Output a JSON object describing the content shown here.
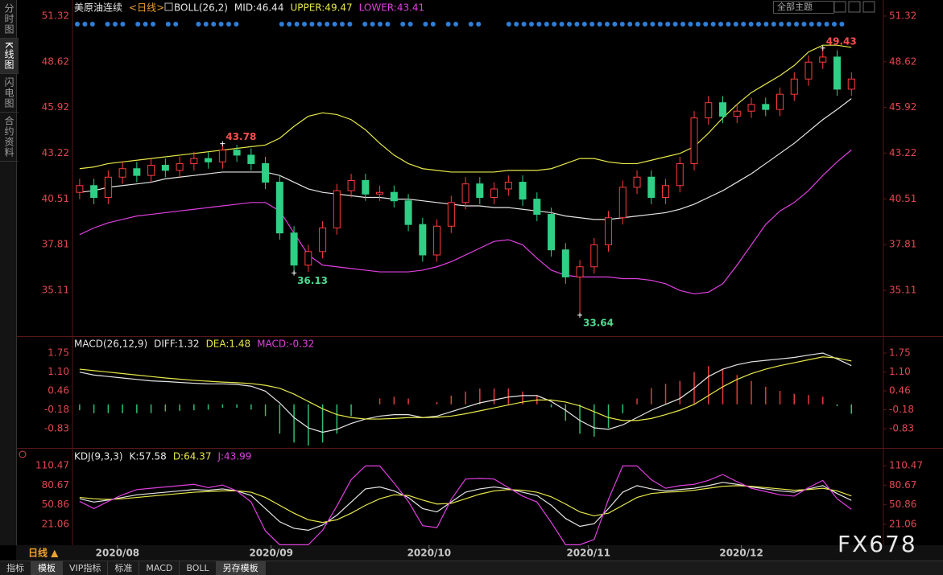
{
  "chart_data": [
    {
      "type": "candlestick",
      "title": "美原油连续",
      "period": "<日线>",
      "indicator": "BOLL(26,2)",
      "x": [
        0,
        2,
        4,
        6,
        8,
        10,
        12,
        14,
        16,
        18,
        20,
        22,
        24,
        26,
        28,
        30,
        32,
        34,
        36,
        38,
        40,
        42,
        44,
        46,
        48,
        50,
        52,
        54,
        56,
        58,
        60,
        62,
        64,
        66,
        68,
        70,
        72,
        74,
        76,
        78,
        80,
        82,
        84,
        86,
        88,
        90,
        92,
        94,
        96,
        98,
        100,
        102,
        104,
        106,
        108
      ],
      "open": [
        40.9,
        41.3,
        40.6,
        41.8,
        42.3,
        41.9,
        42.5,
        42.2,
        42.6,
        42.9,
        42.7,
        43.4,
        43.1,
        42.6,
        41.5,
        38.5,
        36.6,
        37.4,
        38.8,
        41.0,
        41.6,
        40.8,
        40.9,
        40.4,
        39.0,
        37.2,
        38.9,
        40.3,
        41.4,
        40.6,
        41.1,
        41.5,
        40.5,
        39.6,
        37.5,
        35.9,
        36.5,
        37.8,
        39.4,
        41.2,
        41.8,
        40.6,
        41.3,
        42.6,
        45.3,
        46.2,
        45.4,
        45.7,
        46.1,
        45.8,
        46.7,
        47.6,
        48.6,
        48.9,
        47.0
      ],
      "high": [
        41.7,
        41.7,
        42.2,
        42.7,
        42.7,
        42.9,
        42.9,
        43.0,
        43.3,
        43.3,
        43.78,
        43.7,
        43.5,
        43.0,
        41.9,
        38.9,
        37.8,
        39.2,
        41.4,
        42.0,
        42.0,
        41.3,
        41.3,
        40.8,
        39.4,
        39.3,
        40.7,
        41.8,
        41.8,
        41.5,
        41.9,
        41.9,
        40.9,
        40.0,
        37.9,
        36.9,
        38.2,
        39.8,
        41.6,
        42.2,
        42.2,
        41.7,
        43.0,
        45.7,
        46.6,
        46.6,
        46.1,
        46.5,
        46.5,
        47.1,
        48.0,
        49.0,
        49.43,
        49.3,
        48.0
      ],
      "low": [
        40.5,
        40.2,
        40.2,
        41.4,
        41.5,
        41.5,
        41.8,
        41.8,
        42.2,
        42.3,
        42.3,
        42.7,
        42.2,
        41.1,
        38.1,
        36.13,
        36.2,
        37.0,
        38.4,
        40.6,
        40.4,
        40.4,
        40.0,
        38.6,
        36.8,
        36.8,
        38.5,
        39.9,
        40.2,
        40.2,
        40.7,
        40.1,
        39.2,
        37.1,
        35.5,
        33.64,
        36.1,
        37.4,
        39.0,
        40.8,
        40.2,
        40.2,
        40.9,
        42.2,
        44.9,
        45.0,
        45.0,
        45.3,
        45.4,
        45.4,
        46.3,
        47.2,
        48.2,
        46.6,
        46.6
      ],
      "close": [
        41.3,
        40.6,
        41.8,
        42.3,
        41.9,
        42.5,
        42.2,
        42.6,
        42.9,
        42.7,
        43.4,
        43.1,
        42.6,
        41.5,
        38.5,
        36.6,
        37.4,
        38.8,
        41.0,
        41.6,
        40.8,
        40.9,
        40.4,
        39.0,
        37.2,
        38.9,
        40.3,
        41.4,
        40.6,
        41.1,
        41.5,
        40.5,
        39.6,
        37.5,
        35.9,
        36.5,
        37.8,
        39.4,
        41.2,
        41.8,
        40.6,
        41.3,
        42.6,
        45.3,
        46.2,
        45.4,
        45.7,
        46.1,
        45.8,
        46.7,
        47.6,
        48.6,
        48.9,
        47.0,
        47.6
      ],
      "up_color": "#ff3c3c",
      "down_color": "#2fcf86",
      "series": [
        {
          "label": "MID:46.44",
          "color": "#e6e6e6",
          "values": [
            40.9,
            41.0,
            41.2,
            41.3,
            41.4,
            41.5,
            41.7,
            41.8,
            41.9,
            42.0,
            42.1,
            42.1,
            42.1,
            42.1,
            41.9,
            41.5,
            41.1,
            40.9,
            40.8,
            40.7,
            40.6,
            40.6,
            40.5,
            40.5,
            40.4,
            40.3,
            40.2,
            40.1,
            40.1,
            40.0,
            40.0,
            39.9,
            39.8,
            39.7,
            39.5,
            39.4,
            39.3,
            39.3,
            39.4,
            39.5,
            39.6,
            39.7,
            39.9,
            40.2,
            40.6,
            41.0,
            41.5,
            42.0,
            42.6,
            43.2,
            43.8,
            44.5,
            45.2,
            45.8,
            46.44
          ]
        },
        {
          "label": "UPPER:49.47",
          "color": "#e8e84a",
          "values": [
            42.3,
            42.4,
            42.6,
            42.7,
            42.8,
            42.9,
            43.0,
            43.1,
            43.2,
            43.3,
            43.4,
            43.5,
            43.6,
            43.7,
            44.1,
            44.8,
            45.4,
            45.6,
            45.5,
            45.2,
            44.6,
            43.8,
            43.1,
            42.6,
            42.3,
            42.2,
            42.1,
            42.1,
            42.1,
            42.1,
            42.2,
            42.2,
            42.2,
            42.3,
            42.6,
            42.9,
            42.9,
            42.7,
            42.6,
            42.6,
            42.8,
            43.0,
            43.2,
            43.6,
            44.4,
            45.3,
            46.1,
            46.8,
            47.3,
            47.8,
            48.4,
            49.2,
            49.6,
            49.6,
            49.47
          ]
        },
        {
          "label": "LOWER:43.41",
          "color": "#e040e0",
          "values": [
            38.4,
            38.8,
            39.1,
            39.3,
            39.5,
            39.6,
            39.7,
            39.8,
            39.9,
            40.0,
            40.1,
            40.2,
            40.3,
            40.3,
            39.8,
            38.5,
            37.2,
            36.6,
            36.5,
            36.4,
            36.3,
            36.2,
            36.2,
            36.2,
            36.3,
            36.5,
            36.8,
            37.2,
            37.6,
            38.0,
            38.1,
            37.8,
            37.0,
            36.3,
            36.0,
            35.9,
            35.9,
            35.9,
            35.8,
            35.8,
            35.7,
            35.5,
            35.1,
            34.9,
            35.0,
            35.5,
            36.6,
            37.8,
            39.0,
            39.8,
            40.3,
            41.0,
            41.9,
            42.7,
            43.41
          ]
        }
      ],
      "marked_points": [
        {
          "field": "high",
          "index": 10,
          "color": "#ff4d4d"
        },
        {
          "field": "low",
          "index": 15,
          "color": "#4fd98f"
        },
        {
          "field": "low",
          "index": 35,
          "color": "#4fd98f"
        },
        {
          "field": "high",
          "index": 52,
          "color": "#ff4d4d"
        }
      ],
      "xlim": [
        -1,
        110
      ],
      "xticks": [
        {
          "value": 5.3,
          "label": "2020/08"
        },
        {
          "value": 26.8,
          "label": "2020/09"
        },
        {
          "value": 48.9,
          "label": "2020/10"
        },
        {
          "value": 71.2,
          "label": "2020/11"
        },
        {
          "value": 92.6,
          "label": "2020/12"
        }
      ],
      "ylim": [
        32.4,
        51.32
      ],
      "yticks": [
        51.32,
        48.62,
        45.92,
        43.22,
        40.51,
        37.81,
        35.11
      ]
    },
    {
      "type": "macd",
      "indicator": "MACD(26,12,9)",
      "series": [
        {
          "label": "DIFF:1.32",
          "color": "#e6e6e6",
          "values": [
            1.1,
            1.0,
            0.95,
            0.9,
            0.85,
            0.8,
            0.78,
            0.75,
            0.72,
            0.7,
            0.7,
            0.68,
            0.62,
            0.45,
            0.05,
            -0.45,
            -0.8,
            -0.95,
            -0.85,
            -0.65,
            -0.5,
            -0.4,
            -0.35,
            -0.35,
            -0.45,
            -0.4,
            -0.25,
            -0.1,
            0.05,
            0.15,
            0.25,
            0.3,
            0.3,
            0.1,
            -0.2,
            -0.55,
            -0.8,
            -0.85,
            -0.7,
            -0.45,
            -0.2,
            0.0,
            0.2,
            0.55,
            0.95,
            1.2,
            1.35,
            1.45,
            1.5,
            1.55,
            1.6,
            1.68,
            1.75,
            1.55,
            1.32
          ]
        },
        {
          "label": "DEA:1.48",
          "color": "#e8e84a",
          "values": [
            1.2,
            1.15,
            1.1,
            1.05,
            1.0,
            0.95,
            0.9,
            0.86,
            0.82,
            0.79,
            0.76,
            0.74,
            0.71,
            0.65,
            0.55,
            0.35,
            0.1,
            -0.15,
            -0.35,
            -0.45,
            -0.5,
            -0.5,
            -0.48,
            -0.45,
            -0.45,
            -0.44,
            -0.4,
            -0.32,
            -0.22,
            -0.12,
            -0.02,
            0.08,
            0.15,
            0.15,
            0.08,
            -0.05,
            -0.25,
            -0.45,
            -0.55,
            -0.55,
            -0.48,
            -0.35,
            -0.2,
            0.0,
            0.3,
            0.6,
            0.85,
            1.05,
            1.2,
            1.32,
            1.42,
            1.52,
            1.62,
            1.58,
            1.48
          ]
        }
      ],
      "bars": {
        "label": "MACD:-0.32",
        "label_color": "#e040e0",
        "up_color": "#e03c3c",
        "down_color": "#2fbf71",
        "values": [
          -0.2,
          -0.3,
          -0.3,
          -0.3,
          -0.3,
          -0.3,
          -0.24,
          -0.22,
          -0.2,
          -0.18,
          -0.12,
          -0.12,
          -0.18,
          -0.4,
          -1.0,
          -1.3,
          -1.4,
          -1.3,
          -1.0,
          -0.4,
          0.0,
          0.2,
          0.26,
          0.2,
          0.0,
          0.08,
          0.3,
          0.44,
          0.54,
          0.54,
          0.54,
          0.44,
          0.3,
          -0.1,
          -0.56,
          -1.0,
          -1.1,
          -0.8,
          -0.3,
          0.2,
          0.56,
          0.7,
          0.8,
          1.1,
          1.3,
          1.2,
          1.0,
          0.8,
          0.6,
          0.46,
          0.36,
          0.32,
          0.26,
          -0.06,
          -0.32
        ]
      },
      "ylim": [
        -1.43,
        1.75
      ],
      "yticks": [
        1.75,
        {
          "value": 1.1,
          "label": "1.10"
        },
        0.46,
        -0.18,
        -0.83
      ]
    },
    {
      "type": "kdj",
      "indicator": "KDJ(9,3,3)",
      "series": [
        {
          "label": "K:57.58",
          "color": "#e6e6e6",
          "values": [
            60,
            55,
            58,
            62,
            66,
            68,
            70,
            72,
            74,
            73,
            75,
            72,
            65,
            45,
            25,
            15,
            12,
            20,
            35,
            55,
            75,
            78,
            72,
            62,
            45,
            40,
            55,
            70,
            75,
            78,
            75,
            70,
            65,
            50,
            30,
            18,
            22,
            45,
            70,
            80,
            75,
            72,
            74,
            76,
            80,
            85,
            82,
            78,
            75,
            72,
            70,
            75,
            80,
            68,
            57.58
          ]
        },
        {
          "label": "D:64.37",
          "color": "#e8e84a",
          "values": [
            62,
            60,
            59,
            60,
            62,
            64,
            66,
            68,
            70,
            71,
            72,
            72,
            70,
            62,
            50,
            38,
            28,
            24,
            28,
            38,
            50,
            60,
            66,
            65,
            58,
            52,
            53,
            60,
            67,
            72,
            74,
            73,
            70,
            63,
            52,
            40,
            34,
            38,
            50,
            62,
            68,
            70,
            71,
            73,
            76,
            79,
            80,
            79,
            77,
            75,
            73,
            74,
            76,
            72,
            64.37
          ]
        },
        {
          "label": "J:43.99",
          "color": "#e040e0",
          "values": [
            56,
            45,
            56,
            66,
            74,
            76,
            78,
            80,
            82,
            77,
            81,
            72,
            55,
            11,
            -10,
            -10,
            -10,
            12,
            49,
            89,
            110,
            110,
            84,
            56,
            19,
            16,
            59,
            90,
            91,
            90,
            77,
            64,
            55,
            24,
            -10,
            -10,
            -2,
            59,
            110,
            110,
            89,
            76,
            80,
            82,
            88,
            97,
            86,
            76,
            71,
            66,
            64,
            77,
            88,
            60,
            43.99
          ]
        }
      ],
      "ylim": [
        -10.78,
        110.47
      ],
      "yticks": [
        110.47,
        80.67,
        50.86,
        21.06
      ]
    }
  ],
  "ui": {
    "sidebar": [
      "分时图",
      "K线图",
      "闪电图",
      "合约资料"
    ],
    "theme_button": "全部主题",
    "period_label": "日线 ▲",
    "tabs": [
      "指标",
      "模板",
      "VIP指标",
      "标准",
      "MACD",
      "BOLL",
      "另存模板"
    ],
    "watermark": "FX678"
  }
}
